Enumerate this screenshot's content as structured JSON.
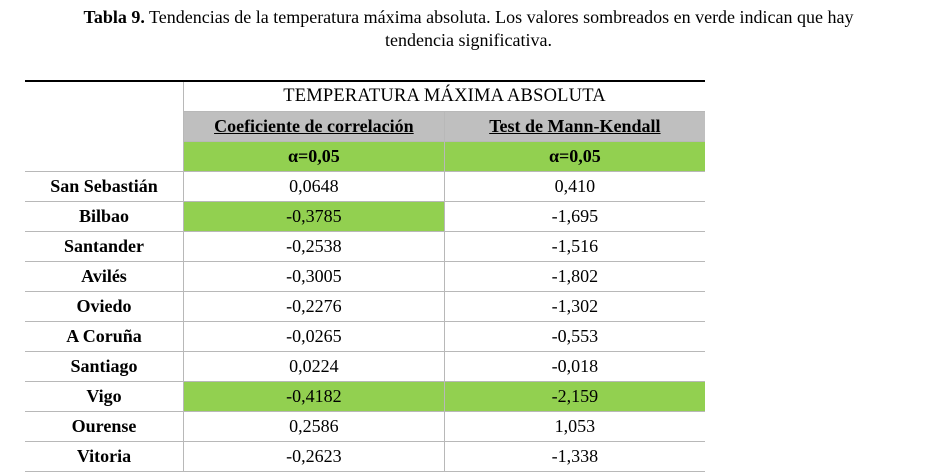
{
  "caption": {
    "label": "Tabla 9.",
    "text_line1": "Tendencias de la temperatura máxima absoluta. Los valores sombreados en verde indican que hay",
    "text_line2": "tendencia significativa."
  },
  "table": {
    "super_header": "TEMPERATURA MÁXIMA ABSOLUTA",
    "columns": [
      "Coeficiente de correlación",
      "Test de Mann-Kendall"
    ],
    "alpha_row": [
      "α=0,05",
      "α=0,05"
    ],
    "rows": [
      {
        "station": "San Sebastián",
        "corr": "0,0648",
        "mk": "0,410",
        "corr_sig": false,
        "mk_sig": false
      },
      {
        "station": "Bilbao",
        "corr": "-0,3785",
        "mk": "-1,695",
        "corr_sig": true,
        "mk_sig": false
      },
      {
        "station": "Santander",
        "corr": "-0,2538",
        "mk": "-1,516",
        "corr_sig": false,
        "mk_sig": false
      },
      {
        "station": "Avilés",
        "corr": "-0,3005",
        "mk": "-1,802",
        "corr_sig": false,
        "mk_sig": false
      },
      {
        "station": "Oviedo",
        "corr": "-0,2276",
        "mk": "-1,302",
        "corr_sig": false,
        "mk_sig": false
      },
      {
        "station": "A Coruña",
        "corr": "-0,0265",
        "mk": "-0,553",
        "corr_sig": false,
        "mk_sig": false
      },
      {
        "station": "Santiago",
        "corr": "0,0224",
        "mk": "-0,018",
        "corr_sig": false,
        "mk_sig": false
      },
      {
        "station": "Vigo",
        "corr": "-0,4182",
        "mk": "-2,159",
        "corr_sig": true,
        "mk_sig": true
      },
      {
        "station": "Ourense",
        "corr": "0,2586",
        "mk": "1,053",
        "corr_sig": false,
        "mk_sig": false
      },
      {
        "station": "Vitoria",
        "corr": "-0,2623",
        "mk": "-1,338",
        "corr_sig": false,
        "mk_sig": false
      }
    ]
  },
  "colors": {
    "significant": "#92d050",
    "header_gray": "#bfbfbf"
  }
}
